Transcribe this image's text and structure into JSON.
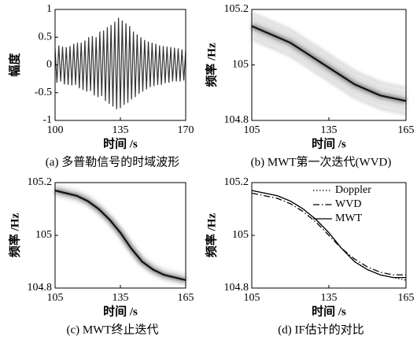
{
  "chart_data": [
    {
      "type": "line",
      "caption": "(a) 多普勒信号的时域波形",
      "xlabel": "时间 /s",
      "ylabel": "幅度",
      "xlim": [
        100,
        170
      ],
      "xticks": [
        100,
        135,
        170
      ],
      "ylim": [
        -1,
        1
      ],
      "yticks": [
        -1,
        -0.5,
        0,
        0.5,
        1
      ],
      "color": "#333333",
      "x": [
        100,
        101,
        102,
        103,
        104,
        105,
        106,
        107,
        108,
        109,
        110,
        111,
        112,
        113,
        114,
        115,
        116,
        117,
        118,
        119,
        120,
        121,
        122,
        123,
        124,
        125,
        126,
        127,
        128,
        129,
        130,
        131,
        132,
        133,
        134,
        135,
        136,
        137,
        138,
        139,
        140,
        141,
        142,
        143,
        144,
        145,
        146,
        147,
        148,
        149,
        150,
        151,
        152,
        153,
        154,
        155,
        156,
        157,
        158,
        159,
        160,
        161,
        162,
        163,
        164,
        165,
        166,
        167,
        168,
        169,
        170
      ],
      "values": [
        0.3,
        -0.32,
        0.35,
        -0.3,
        0.33,
        -0.35,
        0.32,
        -0.36,
        0.34,
        -0.37,
        0.38,
        -0.36,
        0.4,
        -0.42,
        0.4,
        -0.45,
        0.44,
        -0.48,
        0.5,
        -0.47,
        0.52,
        -0.55,
        0.5,
        -0.58,
        0.6,
        -0.56,
        0.62,
        -0.65,
        0.68,
        -0.7,
        0.72,
        -0.75,
        0.78,
        -0.8,
        0.85,
        -0.78,
        0.8,
        -0.72,
        0.75,
        -0.68,
        0.7,
        -0.62,
        0.6,
        -0.58,
        0.55,
        -0.52,
        0.5,
        -0.48,
        0.45,
        -0.44,
        0.42,
        -0.4,
        0.4,
        -0.38,
        0.38,
        -0.36,
        0.35,
        -0.36,
        0.34,
        -0.33,
        0.33,
        -0.32,
        0.32,
        -0.3,
        0.31,
        -0.3,
        0.3,
        -0.3,
        0.28,
        -0.28,
        0.27
      ]
    },
    {
      "type": "heatmap",
      "caption": "(b) MWT第一次迭代(WVD)",
      "xlabel": "时间 /s",
      "ylabel": "频率 /Hz",
      "xlim": [
        105,
        165
      ],
      "xticks": [
        105,
        135,
        165
      ],
      "ylim": [
        104.8,
        105.2
      ],
      "yticks": [
        104.8,
        105,
        105.2
      ],
      "fringes": true,
      "x": [
        105,
        110,
        115,
        120,
        125,
        130,
        135,
        140,
        145,
        150,
        155,
        160,
        165
      ],
      "values": [
        105.14,
        105.12,
        105.1,
        105.08,
        105.05,
        105.02,
        104.99,
        104.96,
        104.93,
        104.91,
        104.89,
        104.88,
        104.87
      ]
    },
    {
      "type": "heatmap",
      "caption": "(c) MWT终止迭代",
      "xlabel": "时间 /s",
      "ylabel": "频率 /Hz",
      "xlim": [
        105,
        165
      ],
      "xticks": [
        105,
        135,
        165
      ],
      "ylim": [
        104.8,
        105.2
      ],
      "yticks": [
        104.8,
        105,
        105.2
      ],
      "fringes": false,
      "x": [
        105,
        110,
        115,
        120,
        125,
        130,
        135,
        140,
        145,
        150,
        155,
        160,
        165
      ],
      "values": [
        105.17,
        105.16,
        105.15,
        105.13,
        105.1,
        105.06,
        105.01,
        104.95,
        104.9,
        104.87,
        104.85,
        104.84,
        104.83
      ]
    },
    {
      "type": "multiline",
      "caption": "(d) IF估计的对比",
      "xlabel": "时间 /s",
      "ylabel": "频率 /Hz",
      "xlim": [
        105,
        165
      ],
      "xticks": [
        105,
        135,
        165
      ],
      "ylim": [
        104.8,
        105.2
      ],
      "yticks": [
        104.8,
        105,
        105.2
      ],
      "legend": "upper right",
      "x": [
        105,
        110,
        115,
        120,
        125,
        130,
        135,
        140,
        145,
        150,
        155,
        160,
        165
      ],
      "series": [
        {
          "name": "Doppler",
          "color": "#000000",
          "dash": "1.5 2.5",
          "values": [
            105.17,
            105.16,
            105.15,
            105.13,
            105.1,
            105.06,
            105.01,
            104.95,
            104.9,
            104.87,
            104.85,
            104.84,
            104.83
          ]
        },
        {
          "name": "WVD",
          "color": "#000000",
          "dash": "8 3 1.5 3",
          "values": [
            105.16,
            105.15,
            105.14,
            105.12,
            105.09,
            105.05,
            105.0,
            104.95,
            104.91,
            104.88,
            104.86,
            104.85,
            104.85
          ]
        },
        {
          "name": "MWT",
          "color": "#000000",
          "dash": "none",
          "values": [
            105.17,
            105.16,
            105.15,
            105.13,
            105.1,
            105.06,
            105.01,
            104.95,
            104.9,
            104.87,
            104.85,
            104.84,
            104.84
          ]
        }
      ]
    }
  ]
}
